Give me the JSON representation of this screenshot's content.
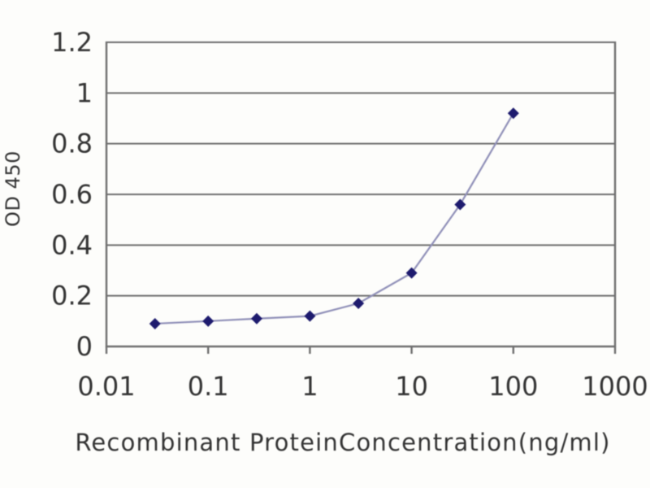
{
  "chart_data": {
    "type": "line",
    "title": "",
    "xlabel": "Recombinant ProteinConcentration(ng/ml)",
    "ylabel": "OD 450",
    "x_scale": "log",
    "xlim": [
      0.01,
      1000
    ],
    "ylim": [
      0,
      1.2
    ],
    "x_ticks": [
      0.01,
      0.1,
      1,
      10,
      100,
      1000
    ],
    "x_tick_labels": [
      "0.01",
      "0.1",
      "1",
      "10",
      "100",
      "1000"
    ],
    "y_ticks": [
      0,
      0.2,
      0.4,
      0.6,
      0.8,
      1,
      1.2
    ],
    "y_tick_labels": [
      "0",
      "0.2",
      "0.4",
      "0.6",
      "0.8",
      "1",
      "1.2"
    ],
    "grid": "horizontal",
    "legend": "none",
    "marker": "diamond",
    "x": [
      0.03,
      0.1,
      0.3,
      1,
      3,
      10,
      30,
      100
    ],
    "y": [
      0.09,
      0.1,
      0.11,
      0.12,
      0.17,
      0.29,
      0.56,
      0.92
    ],
    "colors": {
      "marker": "#1e1b6e",
      "line": "#9090b8",
      "grid": "#6e6e6e",
      "axis": "#6e6e6e",
      "text": "#333333",
      "background": "#fdfdfb"
    }
  }
}
